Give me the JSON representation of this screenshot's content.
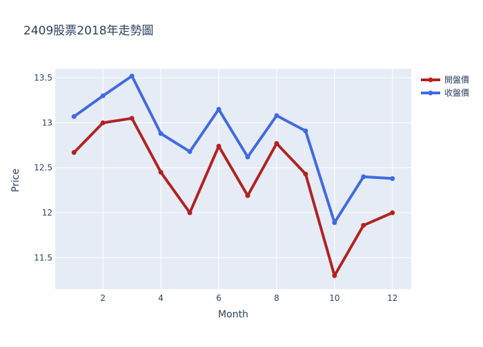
{
  "chart_data": {
    "type": "line",
    "title": "2409股票2018年走勢圖",
    "xlabel": "Month",
    "ylabel": "Price",
    "x": [
      1,
      2,
      3,
      4,
      5,
      6,
      7,
      8,
      9,
      10,
      11,
      12
    ],
    "xlim": [
      0.35,
      12.65
    ],
    "ylim": [
      11.15,
      13.6
    ],
    "xticks": [
      2,
      4,
      6,
      8,
      10,
      12
    ],
    "yticks": [
      11.5,
      12,
      12.5,
      13,
      13.5
    ],
    "ytick_labels": [
      "11.5",
      "12",
      "12.5",
      "13",
      "13.5"
    ],
    "grid": true,
    "legend_position": "top-right",
    "series": [
      {
        "name": "開盤價",
        "color": "#b22222",
        "values": [
          12.67,
          13.0,
          13.05,
          12.45,
          12.0,
          12.74,
          12.19,
          12.77,
          12.43,
          11.3,
          11.86,
          12.0
        ]
      },
      {
        "name": "收盤價",
        "color": "#4169e1",
        "values": [
          13.07,
          13.3,
          13.52,
          12.88,
          12.68,
          13.15,
          12.62,
          13.08,
          12.91,
          11.89,
          12.4,
          12.38
        ]
      }
    ]
  }
}
